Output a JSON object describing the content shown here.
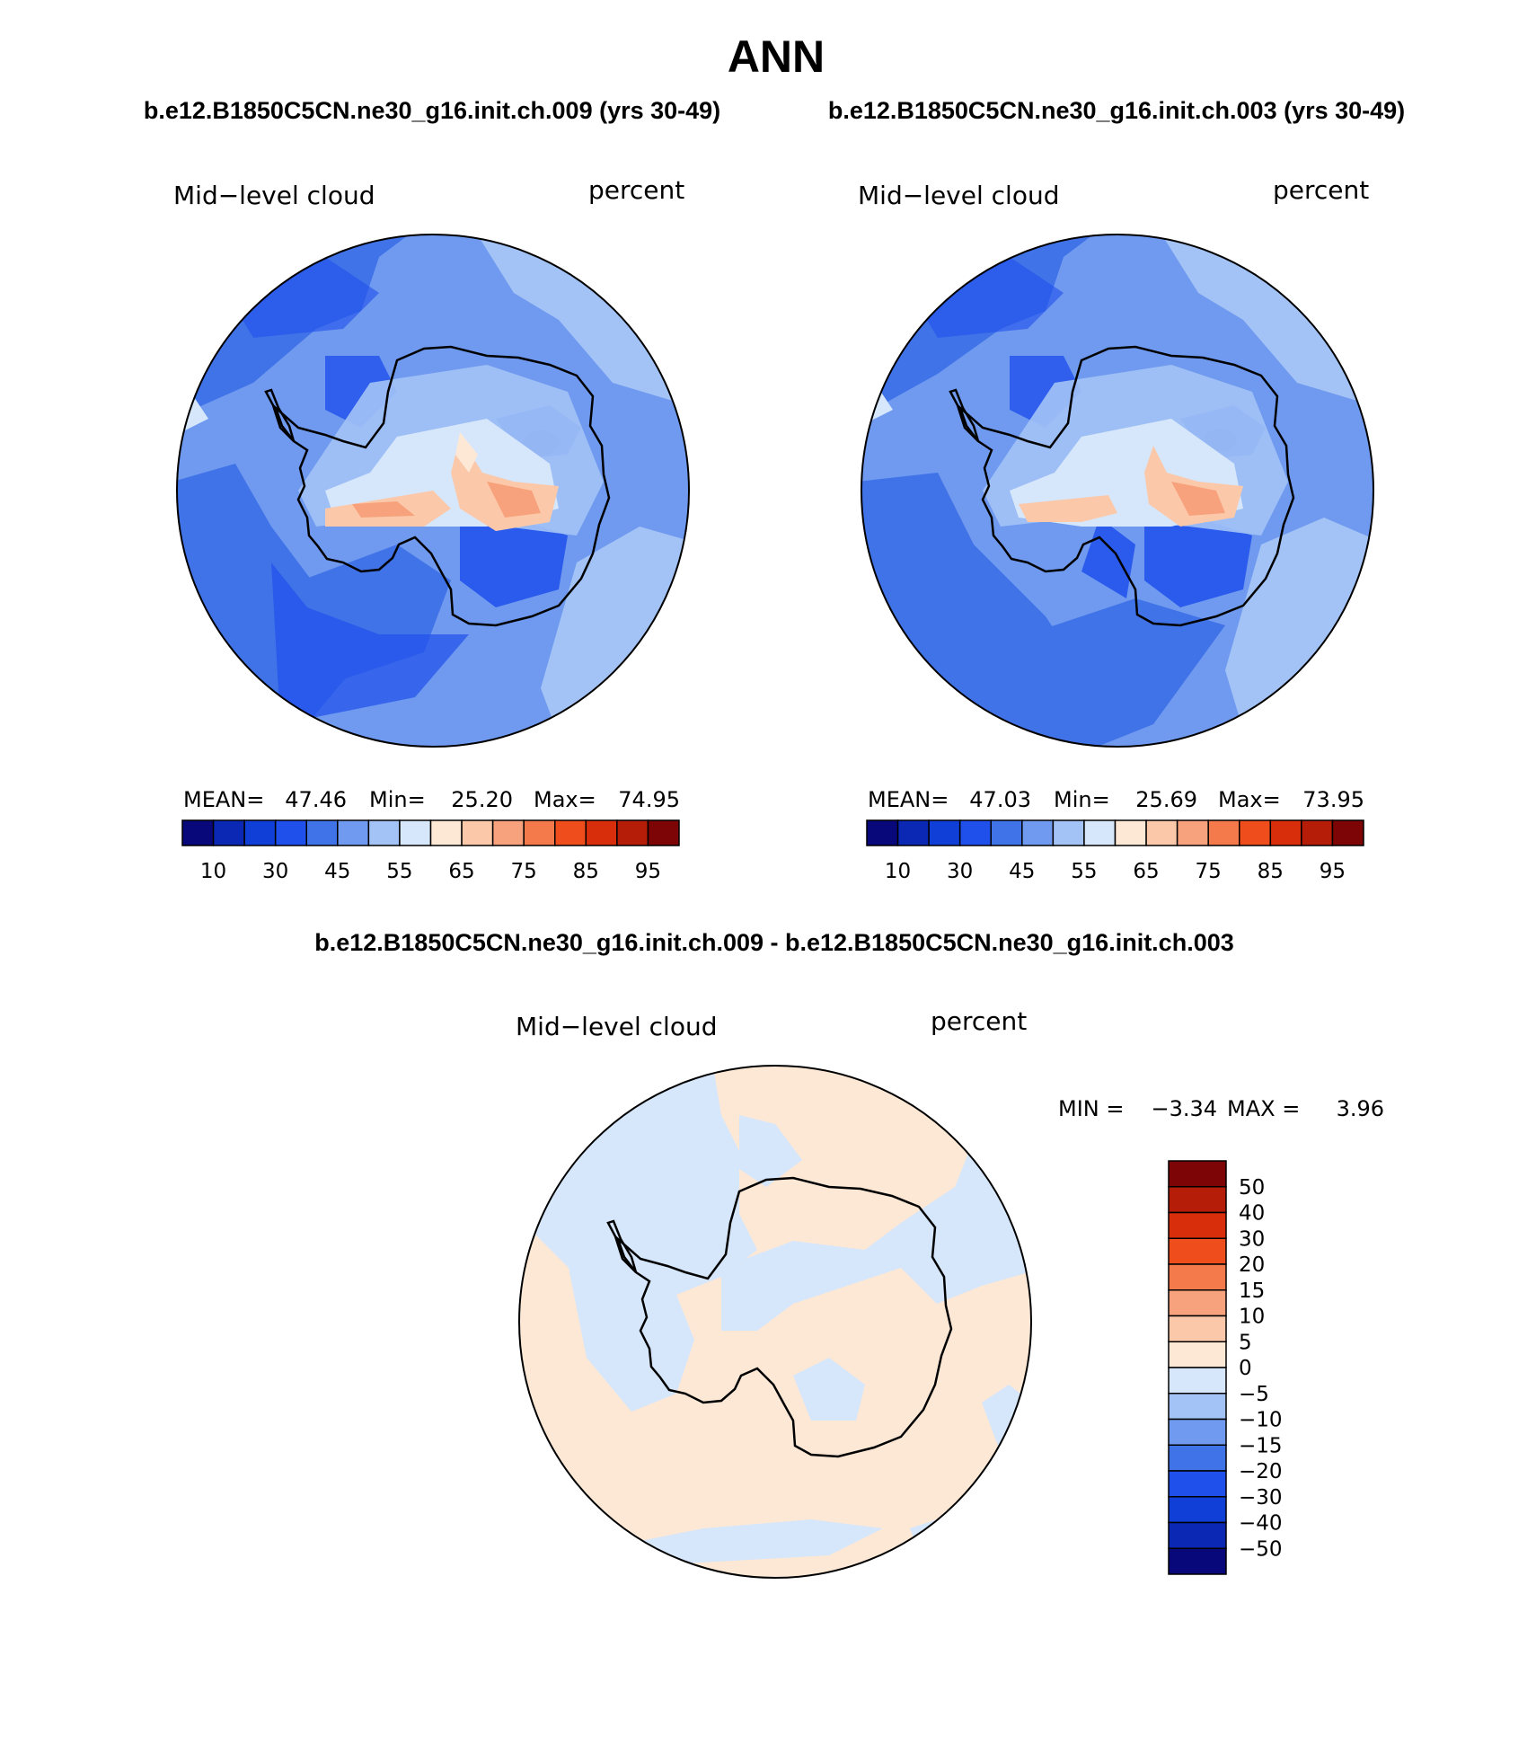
{
  "title": "ANN",
  "case_titles": {
    "left": "b.e12.B1850C5CN.ne30_g16.init.ch.009 (yrs 30-49)",
    "right": "b.e12.B1850C5CN.ne30_g16.init.ch.003 (yrs 30-49)",
    "diff": "b.e12.B1850C5CN.ne30_g16.init.ch.009 - b.e12.B1850C5CN.ne30_g16.init.ch.003"
  },
  "panels": [
    {
      "variable": "Mid−level cloud",
      "units": "percent",
      "stats": {
        "mean_label": "MEAN=",
        "mean": "47.46",
        "min_label": "Min=",
        "min": "25.20",
        "max_label": "Max=",
        "max": "74.95"
      }
    },
    {
      "variable": "Mid−level cloud",
      "units": "percent",
      "stats": {
        "mean_label": "MEAN=",
        "mean": "47.03",
        "min_label": "Min=",
        "min": "25.69",
        "max_label": "Max=",
        "max": "73.95"
      }
    }
  ],
  "diff_panel": {
    "variable": "Mid−level cloud",
    "units": "percent",
    "stats": {
      "min_label": "MIN =",
      "min": "−3.34",
      "max_label": "MAX =",
      "max": "3.96"
    }
  },
  "colorbar_main": {
    "colors": [
      "#08087a",
      "#0a28b4",
      "#0f3fd7",
      "#2050ec",
      "#4173e8",
      "#6f9aef",
      "#a3c3f6",
      "#d6e6fb",
      "#fde8d6",
      "#fbc9aa",
      "#f7a27c",
      "#f47a4b",
      "#f04d1c",
      "#d92e0c",
      "#b51d08",
      "#7e0505"
    ],
    "labels": [
      "10",
      "30",
      "45",
      "55",
      "65",
      "75",
      "85",
      "95"
    ]
  },
  "colorbar_diff": {
    "colors": [
      "#7e0505",
      "#b51d08",
      "#d92e0c",
      "#f04d1c",
      "#f47a4b",
      "#f7a27c",
      "#fbc9aa",
      "#fde8d6",
      "#d6e6fb",
      "#a3c3f6",
      "#6f9aef",
      "#4173e8",
      "#2050ec",
      "#0f3fd7",
      "#0a28b4",
      "#08087a"
    ],
    "labels": [
      "50",
      "40",
      "30",
      "20",
      "15",
      "10",
      "5",
      "0",
      "−5",
      "−10",
      "−15",
      "−20",
      "−30",
      "−40",
      "−50"
    ]
  }
}
